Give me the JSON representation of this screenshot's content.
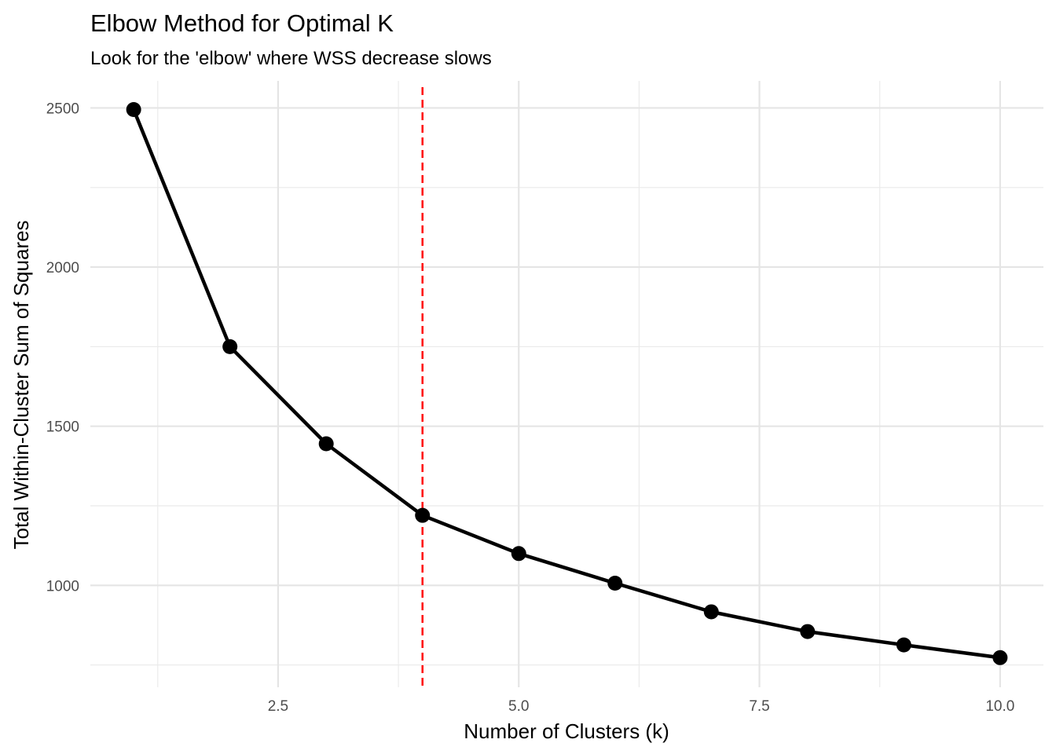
{
  "chart_data": {
    "type": "line",
    "title": "Elbow Method for Optimal K",
    "subtitle": "Look for the 'elbow' where WSS decrease slows",
    "xlabel": "Number of Clusters (k)",
    "ylabel": "Total Within-Cluster Sum of Squares",
    "x": [
      1,
      2,
      3,
      4,
      5,
      6,
      7,
      8,
      9,
      10
    ],
    "series": [
      {
        "values": [
          2495,
          1750,
          1445,
          1220,
          1100,
          1007,
          917,
          855,
          813,
          773
        ]
      }
    ],
    "xlim": [
      0.55,
      10.45
    ],
    "ylim": [
      680,
      2585
    ],
    "x_ticks": [
      2.5,
      5.0,
      7.5,
      10.0
    ],
    "x_tick_labels": [
      "2.5",
      "5.0",
      "7.5",
      "10.0"
    ],
    "y_ticks": [
      1000,
      1500,
      2000,
      2500
    ],
    "y_tick_labels": [
      "1000",
      "1500",
      "2000",
      "2500"
    ],
    "vline": {
      "x": 4,
      "color": "#ff0000",
      "style": "dashed"
    },
    "line_color": "#000000",
    "grid": true,
    "legend": "none"
  }
}
